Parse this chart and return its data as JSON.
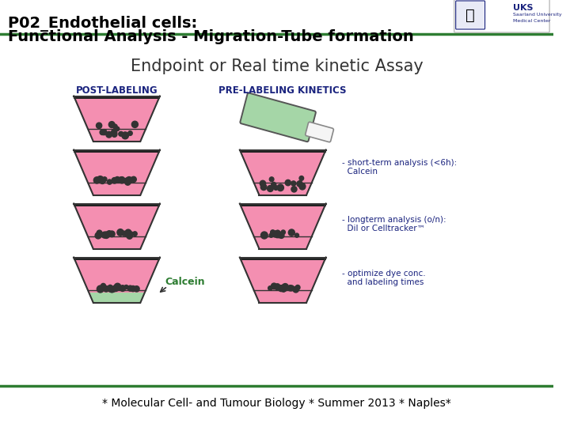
{
  "title_line1": "P02_Endothelial cells:",
  "title_line2": "Functional Analysis - Migration-Tube formation",
  "subtitle": "Endpoint or Real time kinetic Assay",
  "post_label": "POST-LABELING",
  "pre_label": "PRE-LABELING KINETICS",
  "calcein_label": "Calcein",
  "annotation1_line1": "- short-term analysis (<6h):",
  "annotation1_line2": "  Calcein",
  "annotation2_line1": "- longterm analysis (o/n):",
  "annotation2_line2": "  DiI or Celltracker™",
  "annotation3_line1": "- optimize dye conc.",
  "annotation3_line2": "  and labeling times",
  "footer": "* Molecular Cell- and Tumour Biology * Summer 2013 * Naples*",
  "bg_color": "#ffffff",
  "title_color": "#000000",
  "subtitle_color": "#333333",
  "post_label_color": "#1a237e",
  "pre_label_color": "#1a237e",
  "calcein_color": "#2e7d32",
  "annotation_color": "#1a237e",
  "footer_color": "#000000",
  "top_line_color": "#2e7d32",
  "bottom_line_color": "#2e7d32",
  "vessel_pink": "#f48fb1",
  "vessel_outline": "#333333",
  "green_fill": "#a5d6a7",
  "cell_color": "#333333"
}
